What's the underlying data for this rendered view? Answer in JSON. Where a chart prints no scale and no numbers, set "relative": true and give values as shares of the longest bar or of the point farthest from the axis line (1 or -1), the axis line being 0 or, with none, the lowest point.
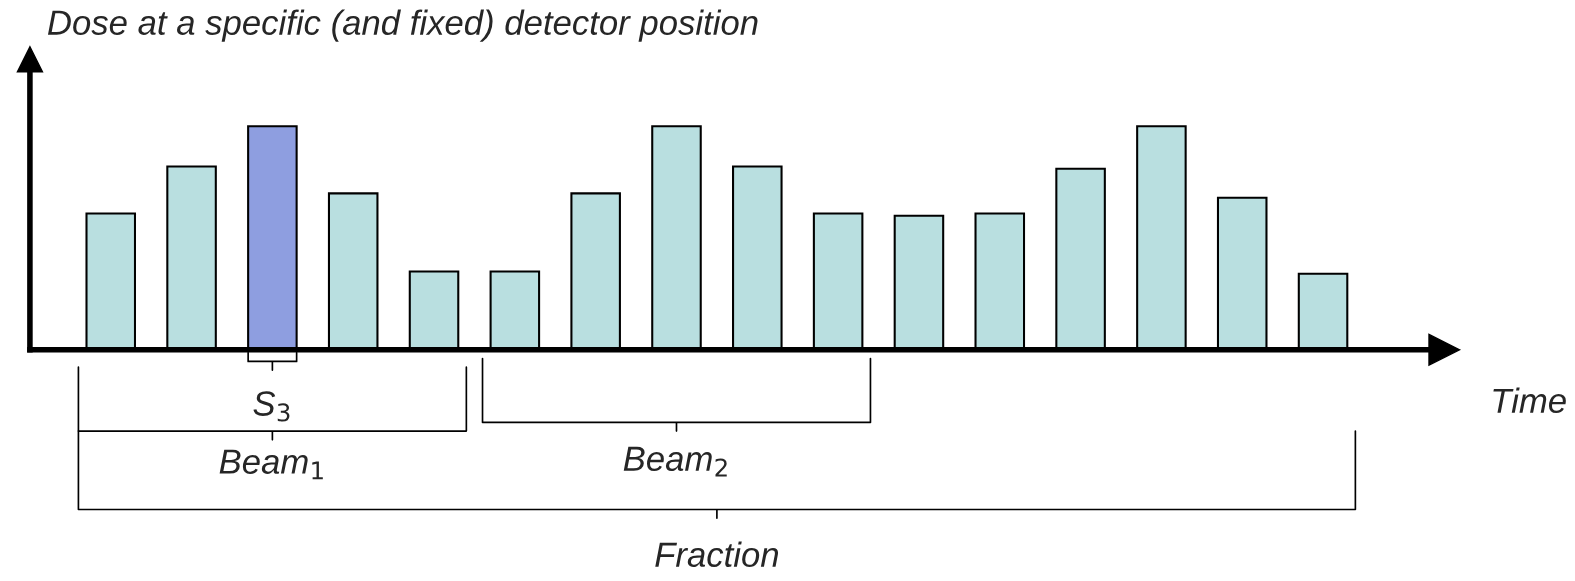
{
  "chart_data": {
    "type": "bar",
    "relative": true,
    "ylabel": "Dose at a specific (and fixed) detector position",
    "xlabel": "Time",
    "categories": [
      null,
      null,
      null,
      null,
      null,
      null,
      null,
      null,
      null,
      null,
      null,
      null,
      null,
      null,
      null,
      null
    ],
    "values": [
      0.61,
      0.82,
      1,
      0.7,
      0.35,
      0.35,
      0.7,
      1,
      0.82,
      0.61,
      0.6,
      0.61,
      0.81,
      1,
      0.68,
      0.34
    ],
    "colors": [
      "#b9dfe0",
      "#b9dfe0",
      "#8e9ee0",
      "#b9dfe0",
      "#b9dfe0",
      "#b9dfe0",
      "#b9dfe0",
      "#b9dfe0",
      "#b9dfe0",
      "#b9dfe0",
      "#b9dfe0",
      "#b9dfe0",
      "#b9dfe0",
      "#b9dfe0",
      "#b9dfe0",
      "#b9dfe0"
    ],
    "annotations": [
      "S$_{3}$",
      "Beam$_{1}$",
      "Beam$_{2}$",
      "Fraction"
    ]
  }
}
